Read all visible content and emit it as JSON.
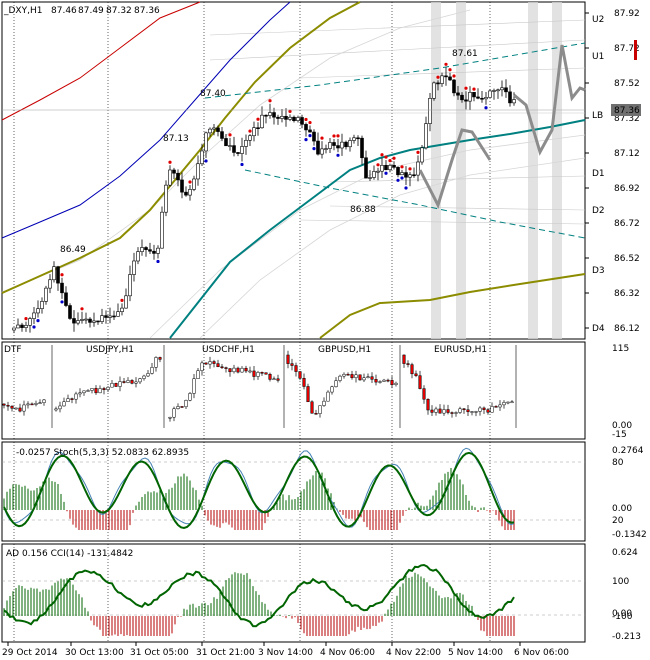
{
  "symbol_header": {
    "symbol": "_DXY,H1",
    "open": "87.46",
    "high": "87.49",
    "low": "87.32",
    "close": "87.36"
  },
  "x_axis_labels": [
    "29 Oct 2014",
    "30 Oct 13:00",
    "31 Oct 05:00",
    "31 Oct 21:00",
    "3 Nov 14:00",
    "4 Nov 06:00",
    "4 Nov 22:00",
    "5 Nov 14:00",
    "6 Nov 06:00"
  ],
  "chart_data": [
    {
      "type": "line",
      "name": "main",
      "price_scale_labels": [
        "87.92",
        "87.72",
        "87.52",
        "87.32",
        "87.12",
        "86.92",
        "86.72",
        "86.52",
        "86.32",
        "86.12"
      ],
      "current_price": "87.36",
      "level_labels": [
        "U2",
        "U1",
        "LB",
        "D1",
        "D2",
        "D3",
        "D4"
      ],
      "annotations": [
        "87.61",
        "87.40",
        "87.13",
        "86.88",
        "86.49"
      ],
      "colors": {
        "bull": "#0000c8",
        "bear": "#e00000",
        "olive": "#8c8c00",
        "teal": "#008080",
        "forecast": "#8c8c8c",
        "current_price_bg": "#707070"
      }
    },
    {
      "type": "line",
      "name": "pairs",
      "pair_labels": [
        "DTF",
        "USDJPY,H1",
        "USDCHF,H1",
        "GBPUSD,H1",
        "EURUSD,H1"
      ],
      "scale_labels": [
        "115",
        "0.00",
        "-15"
      ]
    },
    {
      "type": "line",
      "name": "stoch",
      "header": "-0.0257  Stoch(5,3,3) 52.0833 62.8935",
      "scale_labels": [
        "0.2764",
        "80",
        "0.00",
        "20",
        "-0.1342"
      ]
    },
    {
      "type": "line",
      "name": "cci",
      "header": "AD 0.156  CCI(14) -131.4842",
      "scale_labels": [
        "0.624",
        "100",
        "0.00",
        "-100",
        "-0.213"
      ]
    }
  ]
}
